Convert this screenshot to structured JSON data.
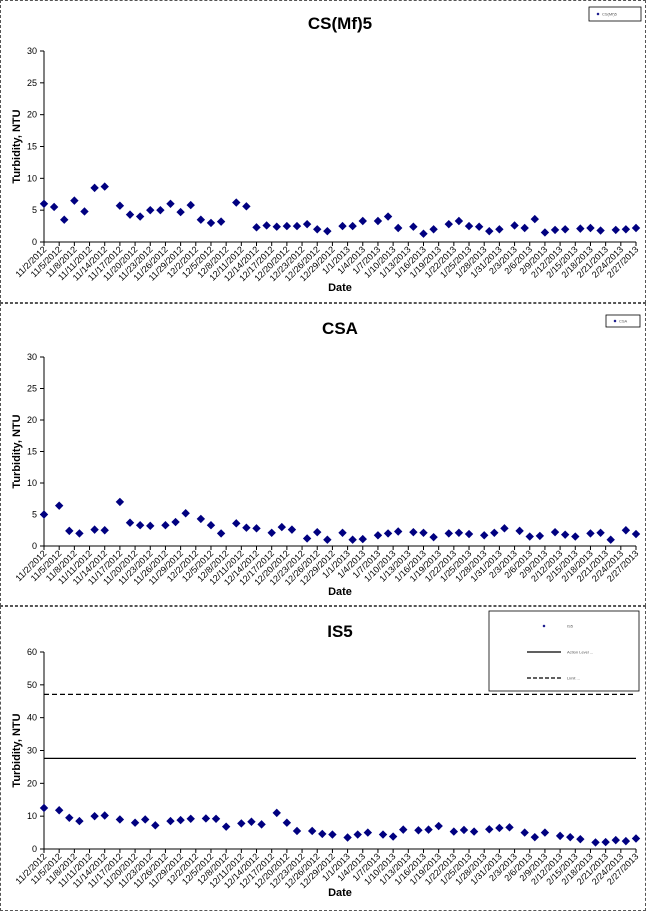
{
  "dates": [
    "11/2/2012",
    "11/5/2012",
    "11/8/2012",
    "11/11/2012",
    "11/14/2012",
    "11/17/2012",
    "11/20/2012",
    "11/23/2012",
    "11/26/2012",
    "11/29/2012",
    "12/2/2012",
    "12/5/2012",
    "12/8/2012",
    "12/11/2012",
    "12/14/2012",
    "12/17/2012",
    "12/20/2012",
    "12/23/2012",
    "12/26/2012",
    "12/29/2012",
    "1/1/2013",
    "1/4/2013",
    "1/7/2013",
    "1/10/2013",
    "1/13/2013",
    "1/16/2013",
    "1/19/2013",
    "1/22/2013",
    "1/25/2013",
    "1/28/2013",
    "1/31/2013",
    "2/3/2013",
    "2/6/2013",
    "2/9/2013",
    "2/12/2013",
    "2/15/2013",
    "2/18/2013",
    "2/21/2013",
    "2/24/2013",
    "2/27/2013"
  ],
  "chart_data": [
    {
      "type": "scatter",
      "title": "CS(Mf)5",
      "xlabel": "Date",
      "ylabel": "Turbidity, NTU",
      "ylim": [
        0,
        30
      ],
      "yticks": [
        0,
        5,
        10,
        15,
        20,
        25,
        30
      ],
      "xlim": [
        "11/2/2012",
        "2/27/2013"
      ],
      "legend": {
        "position": "top-right",
        "entries": [
          "CS(Mf)5"
        ]
      },
      "series": [
        {
          "name": "CS(Mf)5",
          "marker": "diamond",
          "color": "#000080",
          "x": [
            "11/2/2012",
            "11/4/2012",
            "11/6/2012",
            "11/8/2012",
            "11/10/2012",
            "11/12/2012",
            "11/14/2012",
            "11/17/2012",
            "11/19/2012",
            "11/21/2012",
            "11/23/2012",
            "11/25/2012",
            "11/27/2012",
            "11/29/2012",
            "12/1/2012",
            "12/3/2012",
            "12/5/2012",
            "12/7/2012",
            "12/10/2012",
            "12/12/2012",
            "12/14/2012",
            "12/16/2012",
            "12/18/2012",
            "12/20/2012",
            "12/22/2012",
            "12/24/2012",
            "12/26/2012",
            "12/28/2012",
            "12/31/2012",
            "1/2/2013",
            "1/4/2013",
            "1/7/2013",
            "1/9/2013",
            "1/11/2013",
            "1/14/2013",
            "1/16/2013",
            "1/18/2013",
            "1/21/2013",
            "1/23/2013",
            "1/25/2013",
            "1/27/2013",
            "1/29/2013",
            "1/31/2013",
            "2/3/2013",
            "2/5/2013",
            "2/7/2013",
            "2/9/2013",
            "2/11/2013",
            "2/13/2013",
            "2/16/2013",
            "2/18/2013",
            "2/20/2013",
            "2/23/2013",
            "2/25/2013",
            "2/27/2013"
          ],
          "y": [
            6.0,
            5.5,
            3.5,
            6.5,
            4.8,
            8.5,
            8.7,
            5.7,
            4.3,
            4.0,
            5.0,
            5.0,
            6.0,
            4.7,
            5.8,
            3.5,
            3.0,
            3.2,
            6.2,
            5.6,
            2.3,
            2.6,
            2.4,
            2.5,
            2.5,
            2.8,
            2.0,
            1.7,
            2.5,
            2.5,
            3.3,
            3.3,
            4.0,
            2.2,
            2.4,
            1.3,
            2.0,
            2.8,
            3.3,
            2.5,
            2.4,
            1.7,
            2.0,
            2.6,
            2.2,
            3.6,
            1.5,
            1.9,
            2.0,
            2.1,
            2.2,
            1.8,
            1.9,
            2.0,
            2.2
          ]
        }
      ]
    },
    {
      "type": "scatter",
      "title": "CSA",
      "xlabel": "Date",
      "ylabel": "Turbidity, NTU",
      "ylim": [
        0,
        30
      ],
      "yticks": [
        0,
        5,
        10,
        15,
        20,
        25,
        30
      ],
      "xlim": [
        "11/2/2012",
        "2/27/2013"
      ],
      "legend": {
        "position": "top-right",
        "entries": [
          "CSA"
        ]
      },
      "series": [
        {
          "name": "CSA",
          "marker": "diamond",
          "color": "#000080",
          "x": [
            "11/2/2012",
            "11/5/2012",
            "11/7/2012",
            "11/9/2012",
            "11/12/2012",
            "11/14/2012",
            "11/17/2012",
            "11/19/2012",
            "11/21/2012",
            "11/23/2012",
            "11/26/2012",
            "11/28/2012",
            "11/30/2012",
            "12/3/2012",
            "12/5/2012",
            "12/7/2012",
            "12/10/2012",
            "12/12/2012",
            "12/14/2012",
            "12/17/2012",
            "12/19/2012",
            "12/21/2012",
            "12/24/2012",
            "12/26/2012",
            "12/28/2012",
            "12/31/2012",
            "1/2/2013",
            "1/4/2013",
            "1/7/2013",
            "1/9/2013",
            "1/11/2013",
            "1/14/2013",
            "1/16/2013",
            "1/18/2013",
            "1/21/2013",
            "1/23/2013",
            "1/25/2013",
            "1/28/2013",
            "1/30/2013",
            "2/1/2013",
            "2/4/2013",
            "2/6/2013",
            "2/8/2013",
            "2/11/2013",
            "2/13/2013",
            "2/15/2013",
            "2/18/2013",
            "2/20/2013",
            "2/22/2013",
            "2/25/2013",
            "2/27/2013"
          ],
          "y": [
            5.0,
            6.4,
            2.4,
            2.0,
            2.6,
            2.5,
            7.0,
            3.7,
            3.3,
            3.2,
            3.3,
            3.8,
            5.2,
            4.3,
            3.3,
            2.0,
            3.6,
            2.9,
            2.8,
            2.1,
            3.0,
            2.6,
            1.2,
            2.2,
            1.0,
            2.1,
            1.0,
            1.1,
            1.7,
            2.0,
            2.3,
            2.2,
            2.1,
            1.4,
            2.0,
            2.1,
            1.9,
            1.7,
            2.1,
            2.8,
            2.4,
            1.5,
            1.6,
            2.2,
            1.8,
            1.5,
            2.0,
            2.1,
            1.0,
            2.5,
            1.9
          ]
        }
      ]
    },
    {
      "type": "scatter",
      "title": "IS5",
      "xlabel": "Date",
      "ylabel": "Turbidity, NTU",
      "ylim": [
        0,
        60
      ],
      "yticks": [
        0,
        10,
        20,
        30,
        40,
        50,
        60
      ],
      "xlim": [
        "11/2/2012",
        "2/27/2013"
      ],
      "legend": {
        "position": "top-right",
        "entries": [
          "IS5",
          "Action Level ...",
          "Limit ..."
        ]
      },
      "reference_lines": [
        {
          "label": "Action Level ...",
          "y": 27.6,
          "style": "solid"
        },
        {
          "label": "Limit ...",
          "y": 47.1,
          "style": "dashed"
        }
      ],
      "series": [
        {
          "name": "IS5",
          "marker": "diamond",
          "color": "#000080",
          "x": [
            "11/2/2012",
            "11/5/2012",
            "11/7/2012",
            "11/9/2012",
            "11/12/2012",
            "11/14/2012",
            "11/17/2012",
            "11/20/2012",
            "11/22/2012",
            "11/24/2012",
            "11/27/2012",
            "11/29/2012",
            "12/1/2012",
            "12/4/2012",
            "12/6/2012",
            "12/8/2012",
            "12/11/2012",
            "12/13/2012",
            "12/15/2012",
            "12/18/2012",
            "12/20/2012",
            "12/22/2012",
            "12/25/2012",
            "12/27/2012",
            "12/29/2012",
            "1/1/2013",
            "1/3/2013",
            "1/5/2013",
            "1/8/2013",
            "1/10/2013",
            "1/12/2013",
            "1/15/2013",
            "1/17/2013",
            "1/19/2013",
            "1/22/2013",
            "1/24/2013",
            "1/26/2013",
            "1/29/2013",
            "1/31/2013",
            "2/2/2013",
            "2/5/2013",
            "2/7/2013",
            "2/9/2013",
            "2/12/2013",
            "2/14/2013",
            "2/16/2013",
            "2/19/2013",
            "2/21/2013",
            "2/23/2013",
            "2/25/2013",
            "2/27/2013"
          ],
          "y": [
            12.5,
            11.8,
            9.5,
            8.5,
            10.0,
            10.2,
            9.0,
            8.0,
            9.0,
            7.2,
            8.5,
            8.8,
            9.2,
            9.3,
            9.2,
            6.8,
            7.8,
            8.3,
            7.5,
            11.0,
            8.0,
            5.5,
            5.5,
            4.6,
            4.4,
            3.5,
            4.4,
            5.0,
            4.4,
            3.8,
            5.9,
            5.7,
            5.9,
            7.0,
            5.3,
            5.8,
            5.3,
            6.0,
            6.4,
            6.6,
            5.0,
            3.6,
            5.0,
            4.0,
            3.6,
            3.0,
            2.0,
            2.1,
            2.7,
            2.4,
            3.2
          ]
        }
      ]
    }
  ]
}
